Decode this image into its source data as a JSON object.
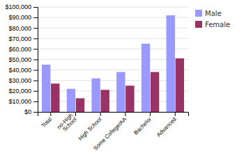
{
  "chart_data": {
    "type": "bar",
    "categories": [
      "Total",
      "no-High\nSchool",
      "High School",
      "Some College/AA",
      "Bachelor",
      "Advanced"
    ],
    "series": [
      {
        "name": "Male",
        "color": "#9999ff",
        "values": [
          45000,
          22000,
          32000,
          38000,
          65000,
          92000
        ]
      },
      {
        "name": "Female",
        "color": "#993366",
        "values": [
          27000,
          13000,
          21000,
          25000,
          38000,
          51000
        ]
      }
    ],
    "ylim": [
      0,
      100000
    ],
    "yticks": [
      {
        "value": 0,
        "label": "$0"
      },
      {
        "value": 10000,
        "label": "$10,000"
      },
      {
        "value": 20000,
        "label": "$20,000"
      },
      {
        "value": 30000,
        "label": "$30,000"
      },
      {
        "value": 40000,
        "label": "$40,000"
      },
      {
        "value": 50000,
        "label": "$50,000"
      },
      {
        "value": 60000,
        "label": "$60,000"
      },
      {
        "value": 70000,
        "label": "$70,000"
      },
      {
        "value": 80000,
        "label": "$80,000"
      },
      {
        "value": 90000,
        "label": "$90,000"
      },
      {
        "value": 100000,
        "label": "$100,000"
      }
    ],
    "grid": true,
    "legend": "right"
  }
}
